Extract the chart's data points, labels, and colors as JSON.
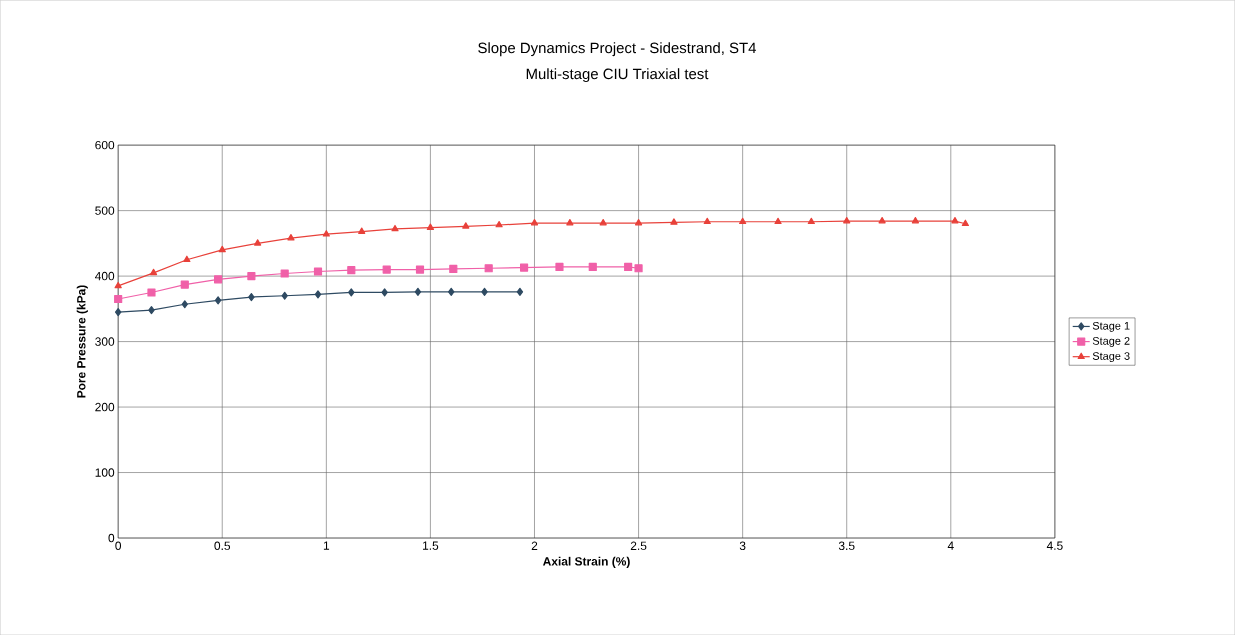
{
  "chart_data": {
    "type": "line",
    "title": "Slope Dynamics Project - Sidestrand, ST4",
    "subtitle": "Multi-stage CIU Triaxial test",
    "xlabel": "Axial Strain (%)",
    "ylabel": "Pore Pressure (kPa)",
    "xlim": [
      0,
      4.5
    ],
    "xticks": [
      0,
      0.5,
      1,
      1.5,
      2,
      2.5,
      3,
      3.5,
      4,
      4.5
    ],
    "ylim": [
      0,
      600
    ],
    "yticks": [
      0,
      100,
      200,
      300,
      400,
      500,
      600
    ],
    "grid": true,
    "legend": "right",
    "line_style": "solid",
    "series": [
      {
        "name": "Stage 1",
        "color": "#2e4a62",
        "marker": "diamond",
        "x": [
          0,
          0.16,
          0.32,
          0.48,
          0.64,
          0.8,
          0.96,
          1.12,
          1.28,
          1.44,
          1.6,
          1.76,
          1.93
        ],
        "values": [
          345,
          348,
          357,
          363,
          368,
          370,
          372,
          375,
          375,
          376,
          376,
          376,
          376
        ]
      },
      {
        "name": "Stage 2",
        "color": "#f060a8",
        "marker": "square",
        "x": [
          0,
          0.16,
          0.32,
          0.48,
          0.64,
          0.8,
          0.96,
          1.12,
          1.29,
          1.45,
          1.61,
          1.78,
          1.95,
          2.12,
          2.28,
          2.45,
          2.5
        ],
        "values": [
          365,
          375,
          387,
          395,
          400,
          404,
          407,
          409,
          410,
          410,
          411,
          412,
          413,
          414,
          414,
          414,
          412
        ]
      },
      {
        "name": "Stage 3",
        "color": "#e8413a",
        "marker": "triangle",
        "x": [
          0,
          0.17,
          0.33,
          0.5,
          0.67,
          0.83,
          1.0,
          1.17,
          1.33,
          1.5,
          1.67,
          1.83,
          2.0,
          2.17,
          2.33,
          2.5,
          2.67,
          2.83,
          3.0,
          3.17,
          3.33,
          3.5,
          3.67,
          3.83,
          4.02,
          4.07
        ],
        "values": [
          385,
          405,
          425,
          440,
          450,
          458,
          464,
          468,
          472,
          474,
          476,
          478,
          481,
          481,
          481,
          481,
          482,
          483,
          483,
          483,
          483,
          484,
          484,
          484,
          484,
          480
        ]
      }
    ]
  }
}
